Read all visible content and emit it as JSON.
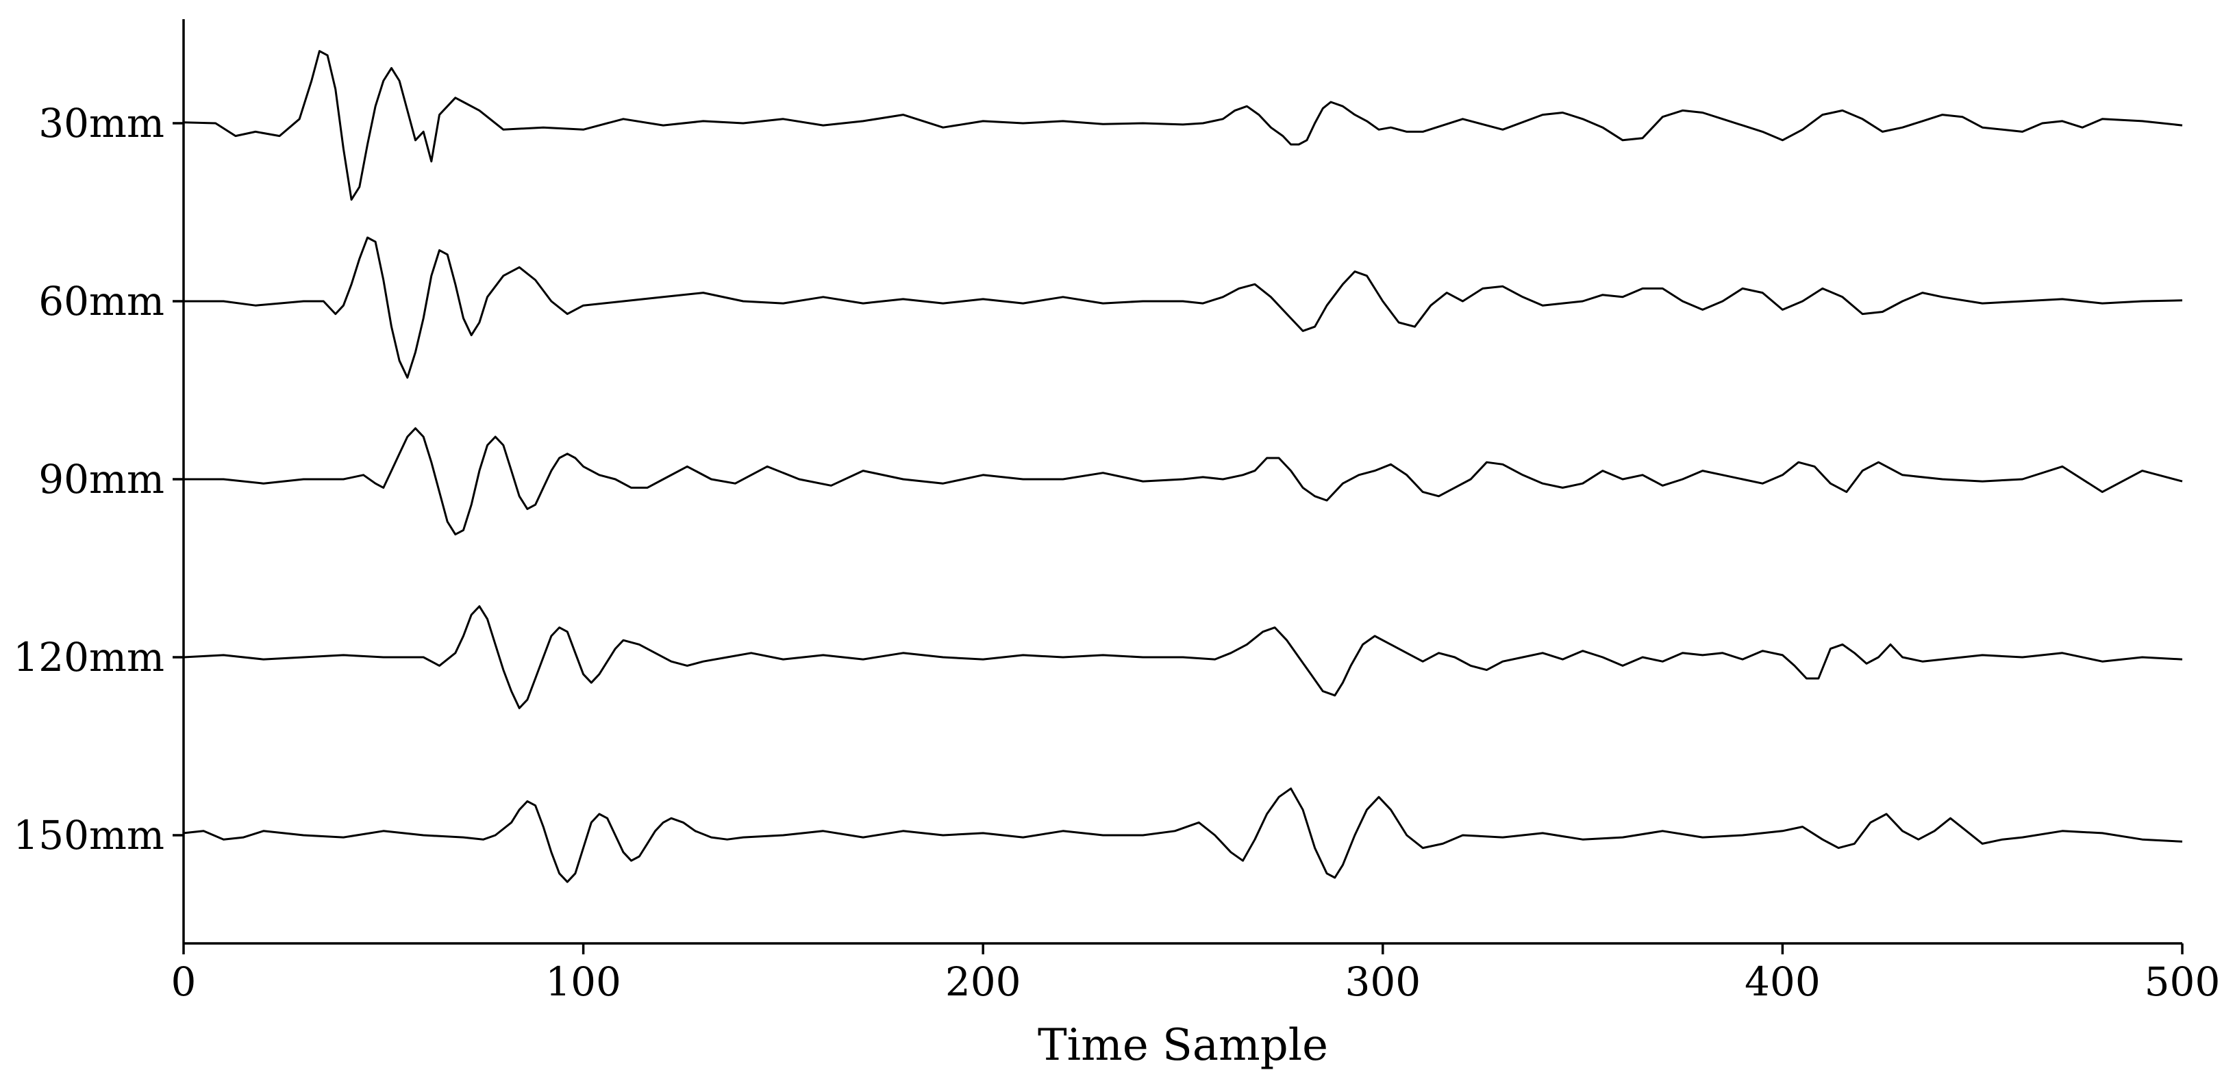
{
  "chart_data": {
    "type": "line",
    "title": "",
    "xlabel": "Time Sample",
    "ylabel": "",
    "xlim": [
      0,
      500
    ],
    "x_ticks": [
      0,
      100,
      200,
      300,
      400,
      500
    ],
    "grid": false,
    "legend": "none",
    "line_color": "#000000",
    "categories": [
      "30mm",
      "60mm",
      "90mm",
      "120mm",
      "150mm"
    ],
    "series": [
      {
        "name": "30mm",
        "x": [
          0,
          8,
          13,
          18,
          24,
          29,
          32,
          34,
          36,
          38,
          40,
          42,
          44,
          46,
          48,
          50,
          52,
          54,
          56,
          58,
          60,
          62,
          64,
          66,
          68,
          70,
          74,
          80,
          90,
          100,
          110,
          120,
          130,
          140,
          150,
          160,
          170,
          180,
          190,
          200,
          210,
          220,
          230,
          240,
          250,
          255,
          260,
          263,
          266,
          269,
          272,
          275,
          277,
          279,
          281,
          283,
          285,
          287,
          290,
          293,
          296,
          299,
          302,
          306,
          310,
          320,
          330,
          340,
          345,
          350,
          355,
          360,
          365,
          370,
          375,
          380,
          385,
          390,
          395,
          400,
          405,
          410,
          415,
          420,
          425,
          430,
          435,
          440,
          445,
          450,
          455,
          460,
          465,
          470,
          475,
          480,
          490,
          500
        ],
        "y": [
          0.02,
          0.0,
          -0.3,
          -0.2,
          -0.3,
          0.1,
          1.0,
          1.7,
          1.6,
          0.8,
          -0.6,
          -1.8,
          -1.5,
          -0.5,
          0.4,
          1.0,
          1.3,
          1.0,
          0.3,
          -0.4,
          -0.2,
          -0.9,
          0.2,
          0.4,
          0.6,
          0.5,
          0.3,
          -0.15,
          -0.1,
          -0.15,
          0.1,
          -0.05,
          0.05,
          0.0,
          0.1,
          -0.05,
          0.05,
          0.2,
          -0.1,
          0.05,
          0.0,
          0.05,
          -0.02,
          0.0,
          -0.03,
          0.0,
          0.1,
          0.3,
          0.4,
          0.2,
          -0.1,
          -0.3,
          -0.5,
          -0.5,
          -0.4,
          0.0,
          0.35,
          0.5,
          0.4,
          0.2,
          0.05,
          -0.15,
          -0.1,
          -0.2,
          -0.2,
          0.1,
          -0.15,
          0.2,
          0.25,
          0.1,
          -0.1,
          -0.4,
          -0.35,
          0.15,
          0.3,
          0.25,
          0.1,
          -0.05,
          -0.2,
          -0.4,
          -0.15,
          0.2,
          0.3,
          0.1,
          -0.2,
          -0.1,
          0.05,
          0.2,
          0.15,
          -0.1,
          -0.15,
          -0.2,
          0.0,
          0.05,
          -0.1,
          0.1,
          0.05,
          -0.05
        ]
      },
      {
        "name": "60mm",
        "x": [
          0,
          10,
          18,
          24,
          30,
          35,
          38,
          40,
          42,
          44,
          46,
          48,
          50,
          52,
          54,
          56,
          58,
          60,
          62,
          64,
          66,
          68,
          70,
          72,
          74,
          76,
          80,
          84,
          88,
          92,
          96,
          100,
          110,
          120,
          130,
          140,
          150,
          160,
          170,
          180,
          190,
          200,
          210,
          220,
          230,
          240,
          250,
          255,
          260,
          264,
          268,
          272,
          276,
          280,
          283,
          286,
          290,
          293,
          296,
          300,
          304,
          308,
          312,
          316,
          320,
          325,
          330,
          335,
          340,
          345,
          350,
          355,
          360,
          365,
          370,
          375,
          380,
          385,
          390,
          395,
          400,
          405,
          410,
          415,
          420,
          425,
          430,
          435,
          440,
          450,
          460,
          470,
          480,
          490,
          500
        ],
        "y": [
          0.0,
          0.0,
          -0.1,
          -0.05,
          0.0,
          0.0,
          -0.3,
          -0.1,
          0.4,
          1.0,
          1.5,
          1.4,
          0.5,
          -0.6,
          -1.4,
          -1.8,
          -1.2,
          -0.4,
          0.6,
          1.2,
          1.1,
          0.4,
          -0.4,
          -0.8,
          -0.5,
          0.1,
          0.6,
          0.8,
          0.5,
          0.0,
          -0.3,
          -0.1,
          0.0,
          0.1,
          0.2,
          0.0,
          -0.05,
          0.1,
          -0.05,
          0.05,
          -0.05,
          0.05,
          -0.05,
          0.1,
          -0.05,
          0.0,
          0.0,
          -0.05,
          0.1,
          0.3,
          0.4,
          0.1,
          -0.3,
          -0.7,
          -0.6,
          -0.1,
          0.4,
          0.7,
          0.6,
          0.0,
          -0.5,
          -0.6,
          -0.1,
          0.2,
          0.0,
          0.3,
          0.35,
          0.1,
          -0.1,
          -0.05,
          0.0,
          0.15,
          0.1,
          0.3,
          0.3,
          0.0,
          -0.2,
          0.0,
          0.3,
          0.2,
          -0.2,
          0.0,
          0.3,
          0.1,
          -0.3,
          -0.25,
          0.0,
          0.2,
          0.1,
          -0.05,
          0.0,
          0.05,
          -0.05,
          0.0,
          0.02
        ]
      },
      {
        "name": "90mm",
        "x": [
          0,
          10,
          20,
          30,
          40,
          45,
          48,
          50,
          52,
          54,
          56,
          58,
          60,
          62,
          64,
          66,
          68,
          70,
          72,
          74,
          76,
          78,
          80,
          82,
          84,
          86,
          88,
          90,
          92,
          94,
          96,
          98,
          100,
          104,
          108,
          112,
          116,
          120,
          126,
          132,
          138,
          146,
          154,
          162,
          170,
          180,
          190,
          200,
          210,
          220,
          230,
          240,
          250,
          255,
          260,
          265,
          268,
          271,
          274,
          277,
          280,
          283,
          286,
          290,
          294,
          298,
          302,
          306,
          310,
          314,
          318,
          322,
          326,
          330,
          335,
          340,
          345,
          350,
          355,
          360,
          365,
          370,
          375,
          380,
          385,
          390,
          395,
          400,
          404,
          408,
          412,
          416,
          420,
          424,
          430,
          440,
          450,
          460,
          470,
          480,
          490,
          500
        ],
        "y": [
          0.0,
          0.0,
          -0.1,
          0.0,
          0.0,
          0.1,
          -0.1,
          -0.2,
          0.2,
          0.6,
          1.0,
          1.2,
          1.0,
          0.4,
          -0.3,
          -1.0,
          -1.3,
          -1.2,
          -0.6,
          0.2,
          0.8,
          1.0,
          0.8,
          0.2,
          -0.4,
          -0.7,
          -0.6,
          -0.2,
          0.2,
          0.5,
          0.6,
          0.5,
          0.3,
          0.1,
          0.0,
          -0.2,
          -0.2,
          0.0,
          0.3,
          0.0,
          -0.1,
          0.3,
          0.0,
          -0.15,
          0.2,
          0.0,
          -0.1,
          0.1,
          0.0,
          0.0,
          0.15,
          -0.05,
          0.0,
          0.05,
          0.0,
          0.1,
          0.2,
          0.5,
          0.5,
          0.2,
          -0.2,
          -0.4,
          -0.5,
          -0.1,
          0.1,
          0.2,
          0.35,
          0.1,
          -0.3,
          -0.4,
          -0.2,
          0.0,
          0.4,
          0.35,
          0.1,
          -0.1,
          -0.2,
          -0.1,
          0.2,
          0.0,
          0.1,
          -0.15,
          0.0,
          0.2,
          0.1,
          0.0,
          -0.1,
          0.1,
          0.4,
          0.3,
          -0.1,
          -0.3,
          0.2,
          0.4,
          0.1,
          0.0,
          -0.05,
          0.0,
          0.3,
          -0.3,
          0.2,
          -0.05
        ]
      },
      {
        "name": "120mm",
        "x": [
          0,
          10,
          20,
          30,
          40,
          50,
          60,
          64,
          68,
          70,
          72,
          74,
          76,
          78,
          80,
          82,
          84,
          86,
          88,
          90,
          92,
          94,
          96,
          98,
          100,
          102,
          104,
          106,
          108,
          110,
          114,
          118,
          122,
          126,
          130,
          136,
          142,
          150,
          160,
          170,
          180,
          190,
          200,
          210,
          220,
          230,
          240,
          250,
          258,
          262,
          266,
          270,
          273,
          276,
          279,
          282,
          285,
          288,
          290,
          292,
          295,
          298,
          302,
          306,
          310,
          314,
          318,
          322,
          326,
          330,
          335,
          340,
          345,
          350,
          355,
          360,
          365,
          370,
          375,
          380,
          385,
          390,
          395,
          400,
          403,
          406,
          409,
          412,
          415,
          418,
          421,
          424,
          427,
          430,
          435,
          440,
          450,
          460,
          470,
          480,
          490,
          500
        ],
        "y": [
          0.0,
          0.05,
          -0.05,
          0.0,
          0.05,
          0.0,
          0.0,
          -0.2,
          0.1,
          0.5,
          1.0,
          1.2,
          0.9,
          0.3,
          -0.3,
          -0.8,
          -1.2,
          -1.0,
          -0.5,
          0.0,
          0.5,
          0.7,
          0.6,
          0.1,
          -0.4,
          -0.6,
          -0.4,
          -0.1,
          0.2,
          0.4,
          0.3,
          0.1,
          -0.1,
          -0.2,
          -0.1,
          0.0,
          0.1,
          -0.05,
          0.05,
          -0.05,
          0.1,
          0.0,
          -0.05,
          0.05,
          0.0,
          0.05,
          0.0,
          0.0,
          -0.05,
          0.1,
          0.3,
          0.6,
          0.7,
          0.4,
          0.0,
          -0.4,
          -0.8,
          -0.9,
          -0.6,
          -0.2,
          0.3,
          0.5,
          0.3,
          0.1,
          -0.1,
          0.1,
          0.0,
          -0.2,
          -0.3,
          -0.1,
          0.0,
          0.1,
          -0.05,
          0.15,
          0.0,
          -0.2,
          0.0,
          -0.1,
          0.1,
          0.05,
          0.1,
          -0.05,
          0.15,
          0.05,
          -0.2,
          -0.5,
          -0.5,
          0.2,
          0.3,
          0.1,
          -0.15,
          0.0,
          0.3,
          0.0,
          -0.1,
          -0.05,
          0.05,
          0.0,
          0.1,
          -0.1,
          0.0,
          -0.05
        ]
      },
      {
        "name": "150mm",
        "x": [
          0,
          5,
          10,
          15,
          20,
          30,
          40,
          50,
          60,
          70,
          75,
          78,
          82,
          84,
          86,
          88,
          90,
          92,
          94,
          96,
          98,
          100,
          102,
          104,
          106,
          108,
          110,
          112,
          114,
          116,
          118,
          120,
          122,
          125,
          128,
          132,
          136,
          140,
          150,
          160,
          170,
          180,
          190,
          200,
          210,
          220,
          230,
          240,
          248,
          254,
          258,
          262,
          265,
          268,
          271,
          274,
          277,
          280,
          283,
          286,
          288,
          290,
          293,
          296,
          299,
          302,
          306,
          310,
          315,
          320,
          330,
          340,
          350,
          360,
          370,
          380,
          390,
          400,
          405,
          410,
          414,
          418,
          422,
          426,
          430,
          434,
          438,
          442,
          446,
          450,
          455,
          460,
          470,
          480,
          490,
          500
        ],
        "y": [
          0.05,
          0.1,
          -0.1,
          -0.05,
          0.1,
          0.0,
          -0.05,
          0.1,
          0.0,
          -0.05,
          -0.1,
          0.0,
          0.3,
          0.6,
          0.8,
          0.7,
          0.2,
          -0.4,
          -0.9,
          -1.1,
          -0.9,
          -0.3,
          0.3,
          0.5,
          0.4,
          0.0,
          -0.4,
          -0.6,
          -0.5,
          -0.2,
          0.1,
          0.3,
          0.4,
          0.3,
          0.1,
          -0.05,
          -0.1,
          -0.05,
          0.0,
          0.1,
          -0.05,
          0.1,
          0.0,
          0.05,
          -0.05,
          0.1,
          0.0,
          0.0,
          0.1,
          0.3,
          0.0,
          -0.4,
          -0.6,
          -0.1,
          0.5,
          0.9,
          1.1,
          0.6,
          -0.3,
          -0.9,
          -1.0,
          -0.7,
          0.0,
          0.6,
          0.9,
          0.6,
          0.0,
          -0.3,
          -0.2,
          0.0,
          -0.05,
          0.05,
          -0.1,
          -0.05,
          0.1,
          -0.05,
          0.0,
          0.1,
          0.2,
          -0.1,
          -0.3,
          -0.2,
          0.3,
          0.5,
          0.1,
          -0.1,
          0.1,
          0.4,
          0.1,
          -0.2,
          -0.1,
          -0.05,
          0.1,
          0.05,
          -0.1,
          -0.15
        ]
      }
    ]
  }
}
